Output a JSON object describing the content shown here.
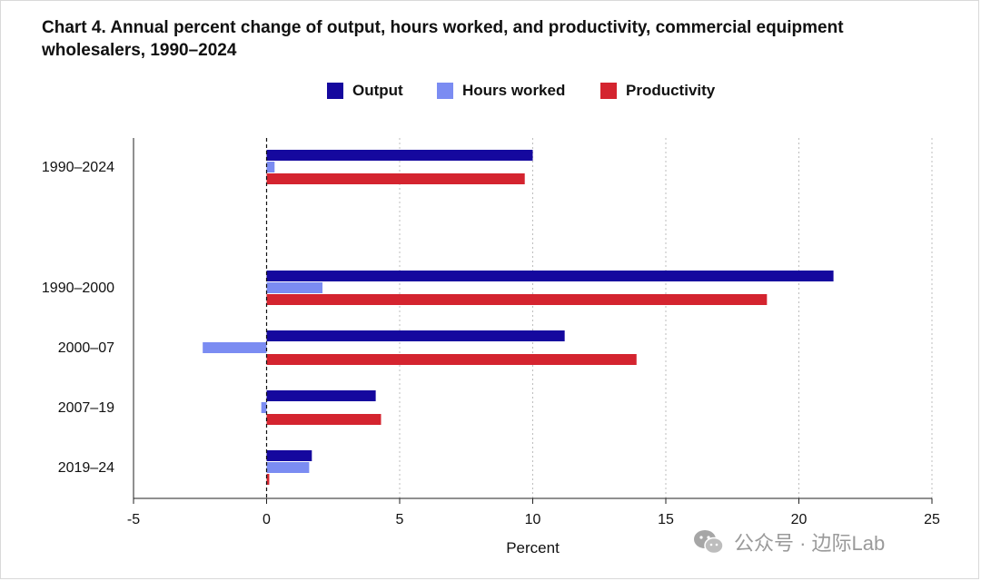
{
  "chart_data": {
    "type": "bar",
    "orientation": "horizontal",
    "title": "Chart 4. Annual percent change of output, hours worked, and productivity, commercial equipment wholesalers, 1990–2024",
    "xlabel": "Percent",
    "ylabel": "",
    "xlim": [
      -5,
      25
    ],
    "xticks": [
      -5,
      0,
      5,
      10,
      15,
      20,
      25
    ],
    "grid": "vertical-dotted",
    "legend_position": "top-center",
    "categories": [
      "1990–2024",
      "1990–2000",
      "2000–07",
      "2007–19",
      "2019–24"
    ],
    "series": [
      {
        "name": "Output",
        "color": "#15089e",
        "values": [
          10.0,
          21.3,
          11.2,
          4.1,
          1.7
        ]
      },
      {
        "name": "Hours worked",
        "color": "#7b8cf2",
        "values": [
          0.3,
          2.1,
          -2.4,
          -0.2,
          1.6
        ]
      },
      {
        "name": "Productivity",
        "color": "#d4242f",
        "values": [
          9.7,
          18.8,
          13.9,
          4.3,
          0.1
        ]
      }
    ]
  },
  "watermark": {
    "text": "公众号 · 边际Lab"
  }
}
